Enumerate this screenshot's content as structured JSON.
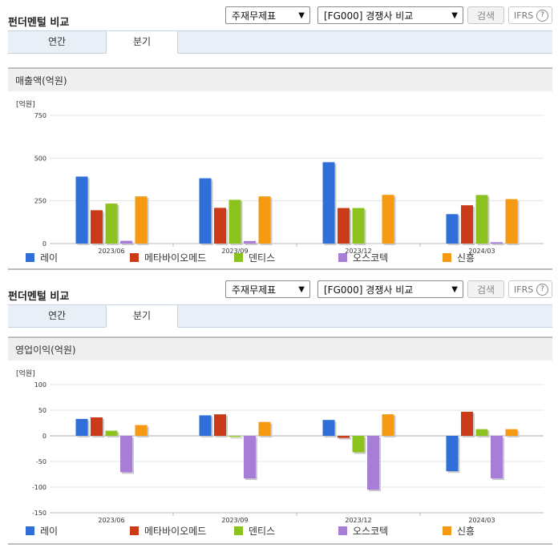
{
  "ui": {
    "panel_title": "펀더멘털 비교",
    "select_statement": "주재무제표",
    "select_compare": "[FG000] 경쟁사 비교",
    "search_button": "검색",
    "ifrs_label": "IFRS",
    "help_glyph": "?",
    "tab_annual": "연간",
    "tab_quarterly": "분기",
    "active_tab": "분기"
  },
  "colors": {
    "레이": "#2f6fd7",
    "메타바이오메드": "#cc3b17",
    "덴티스": "#8cc21e",
    "오스코텍": "#a77ed6",
    "신흥": "#f59a12"
  },
  "chart_data": [
    {
      "type": "bar",
      "section_title": "매출액(억원)",
      "unit_label": "[억원]",
      "categories": [
        "2023/06",
        "2023/09",
        "2023/12",
        "2024/03"
      ],
      "ylim": [
        0,
        750
      ],
      "yticks": [
        0,
        250,
        500,
        750
      ],
      "ytick_labels": [
        "0",
        "250",
        "500",
        "750"
      ],
      "grid": true,
      "legend_position": "bottom",
      "series": [
        {
          "name": "레이",
          "values": [
            392,
            382,
            476,
            172
          ]
        },
        {
          "name": "메타바이오메드",
          "values": [
            195,
            209,
            208,
            224
          ]
        },
        {
          "name": "덴티스",
          "values": [
            234,
            256,
            208,
            284
          ]
        },
        {
          "name": "오스코텍",
          "values": [
            16,
            15,
            0,
            8
          ]
        },
        {
          "name": "신흥",
          "values": [
            276,
            276,
            285,
            260
          ]
        }
      ]
    },
    {
      "type": "bar",
      "section_title": "영업이익(억원)",
      "unit_label": "[억원]",
      "categories": [
        "2023/06",
        "2023/09",
        "2023/12",
        "2024/03"
      ],
      "ylim": [
        -150,
        100
      ],
      "yticks": [
        -150,
        -100,
        -50,
        0,
        50,
        100
      ],
      "ytick_labels": [
        "-150",
        "-100",
        "-50",
        "0",
        "50",
        "100"
      ],
      "grid": true,
      "legend_position": "bottom",
      "series": [
        {
          "name": "레이",
          "values": [
            33,
            40,
            31,
            -69
          ]
        },
        {
          "name": "메타바이오메드",
          "values": [
            36,
            42,
            -4,
            47
          ]
        },
        {
          "name": "덴티스",
          "values": [
            10,
            -2,
            -32,
            13
          ]
        },
        {
          "name": "오스코텍",
          "values": [
            -71,
            -83,
            -105,
            -83
          ]
        },
        {
          "name": "신흥",
          "values": [
            21,
            27,
            42,
            13
          ]
        }
      ]
    }
  ]
}
